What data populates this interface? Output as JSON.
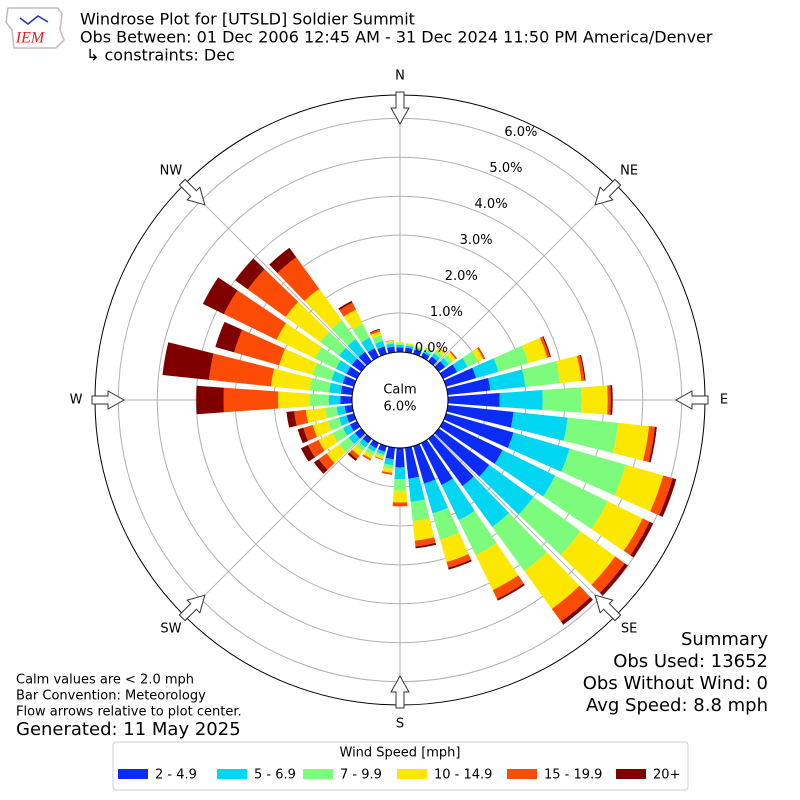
{
  "chart_data": {
    "type": "windrose",
    "title": "Windrose Plot for [UTSLD] Soldier Summit",
    "subtitle": "Obs Between: 01 Dec 2006 12:45 AM - 31 Dec 2024 11:50 PM America/Denver",
    "constraints": "↳ constraints: Dec",
    "logo_text": "IEM",
    "calm_text": "Calm",
    "calm_value": "6.0%",
    "x": [
      0,
      10,
      20,
      30,
      40,
      50,
      60,
      70,
      80,
      90,
      100,
      110,
      120,
      130,
      140,
      150,
      160,
      170,
      180,
      190,
      200,
      210,
      220,
      230,
      240,
      250,
      260,
      270,
      280,
      290,
      300,
      310,
      320,
      330,
      340,
      350
    ],
    "xticks": [
      {
        "value": 0,
        "label": "N"
      },
      {
        "value": 45,
        "label": "NE"
      },
      {
        "value": 90,
        "label": "E"
      },
      {
        "value": 135,
        "label": "SE"
      },
      {
        "value": 180,
        "label": "S"
      },
      {
        "value": 225,
        "label": "SW"
      },
      {
        "value": 270,
        "label": "W"
      },
      {
        "value": 315,
        "label": "NW"
      }
    ],
    "ylim": [
      0,
      6.6
    ],
    "yticks": [
      {
        "value": 0,
        "label": "0.0%"
      },
      {
        "value": 1,
        "label": "1.0%"
      },
      {
        "value": 2,
        "label": "2.0%"
      },
      {
        "value": 3,
        "label": "3.0%"
      },
      {
        "value": 4,
        "label": "4.0%"
      },
      {
        "value": 5,
        "label": "5.0%"
      },
      {
        "value": 6,
        "label": "6.0%"
      }
    ],
    "grid": true,
    "legend_title": "Wind Speed [mph]",
    "series": [
      {
        "name": "2 - 4.9",
        "color": "#0b2cf6",
        "values": [
          0.12,
          0.12,
          0.12,
          0.12,
          0.15,
          0.2,
          0.4,
          0.8,
          1.1,
          1.33,
          1.7,
          1.8,
          1.7,
          1.6,
          1.5,
          1.2,
          1.0,
          0.8,
          0.5,
          0.3,
          0.15,
          0.15,
          0.15,
          0.2,
          0.2,
          0.2,
          0.2,
          0.3,
          0.3,
          0.3,
          0.3,
          0.3,
          0.3,
          0.25,
          0.2,
          0.15
        ]
      },
      {
        "name": "5 - 6.9",
        "color": "#00d5f2",
        "values": [
          0.06,
          0.05,
          0.05,
          0.06,
          0.1,
          0.12,
          0.3,
          0.6,
          0.9,
          1.1,
          1.4,
          1.5,
          1.5,
          1.4,
          1.3,
          1.0,
          0.8,
          0.6,
          0.3,
          0.15,
          0.08,
          0.1,
          0.12,
          0.2,
          0.2,
          0.2,
          0.2,
          0.3,
          0.3,
          0.3,
          0.3,
          0.4,
          0.4,
          0.3,
          0.15,
          0.08
        ]
      },
      {
        "name": "7 - 9.9",
        "color": "#7dfb7c",
        "values": [
          0.04,
          0.04,
          0.04,
          0.05,
          0.1,
          0.12,
          0.3,
          0.8,
          0.9,
          1.0,
          1.3,
          1.5,
          1.5,
          1.5,
          1.4,
          1.0,
          0.7,
          0.5,
          0.3,
          0.1,
          0.06,
          0.1,
          0.12,
          0.3,
          0.3,
          0.3,
          0.3,
          0.5,
          0.5,
          0.5,
          0.6,
          0.6,
          0.6,
          0.4,
          0.15,
          0.05
        ]
      },
      {
        "name": "10 - 14.9",
        "color": "#fbe700",
        "values": [
          0.03,
          0.03,
          0.02,
          0.03,
          0.08,
          0.1,
          0.15,
          0.5,
          0.55,
          0.67,
          0.8,
          1.0,
          1.0,
          1.1,
          1.2,
          1.0,
          0.6,
          0.5,
          0.3,
          0.1,
          0.06,
          0.1,
          0.15,
          0.4,
          0.4,
          0.4,
          0.5,
          0.8,
          1.0,
          0.9,
          1.1,
          1.1,
          1.0,
          0.4,
          0.1,
          0.03
        ]
      },
      {
        "name": "15 - 19.9",
        "color": "#fb4b05",
        "values": [
          0,
          0,
          0,
          0.01,
          0.02,
          0.03,
          0.04,
          0.07,
          0.08,
          0.08,
          0.15,
          0.25,
          0.2,
          0.3,
          0.4,
          0.25,
          0.15,
          0.15,
          0.1,
          0.05,
          0.02,
          0.05,
          0.1,
          0.25,
          0.3,
          0.25,
          0.3,
          1.4,
          1.6,
          1.2,
          1.5,
          1.2,
          1.0,
          0.2,
          0.05,
          0.01
        ]
      },
      {
        "name": "20+",
        "color": "#800000",
        "values": [
          0,
          0,
          0,
          0,
          0,
          0.01,
          0.01,
          0.03,
          0.03,
          0.05,
          0.05,
          0.1,
          0.1,
          0.1,
          0.1,
          0.05,
          0.05,
          0.05,
          0,
          0,
          0,
          0,
          0.06,
          0.15,
          0.2,
          0.15,
          0.2,
          0.7,
          1.2,
          0.5,
          0.6,
          0.4,
          0.3,
          0.05,
          0.02,
          0
        ]
      }
    ],
    "summary": [
      "Summary",
      "Obs Used: 13652",
      "Obs Without Wind: 0",
      "Avg Speed: 8.8 mph"
    ],
    "notes": [
      "Calm values are < 2.0 mph",
      "Bar Convention: Meteorology",
      "Flow arrows relative to plot center."
    ],
    "generated": "Generated: 11 May 2025"
  }
}
